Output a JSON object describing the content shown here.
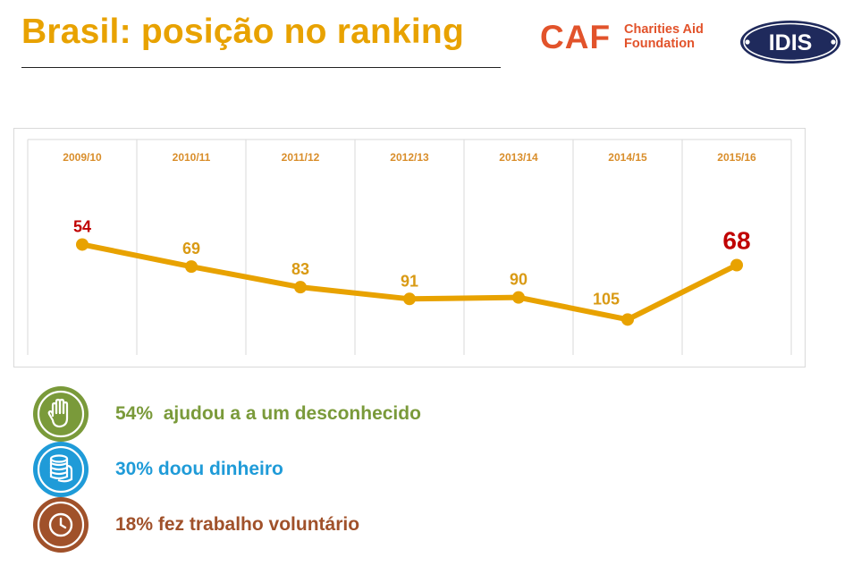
{
  "header": {
    "title": "Brasil: posição no ranking"
  },
  "logos": {
    "caf_mark": "CAF",
    "caf_name_line1": "Charities Aid",
    "caf_name_line2": "Foundation",
    "idis": "IDIS"
  },
  "colors": {
    "title": "#E8A200",
    "line": "#E8A200",
    "highlight": "#C00000",
    "caf": "#E2532B",
    "idis": "#1F2A5C",
    "green": "#7A9A3A",
    "blue": "#1F9BD8",
    "brown": "#A0512A"
  },
  "chart_data": {
    "type": "line",
    "title": "",
    "categories": [
      "2009/10",
      "2010/11",
      "2011/12",
      "2012/13",
      "2013/14",
      "2014/15",
      "2015/16"
    ],
    "series": [
      {
        "name": "Posição no ranking",
        "values": [
          54,
          69,
          83,
          91,
          90,
          105,
          68
        ]
      }
    ],
    "data_labels": [
      "54",
      "69",
      "83",
      "91",
      "90",
      "105",
      "68"
    ],
    "highlighted_indices": [
      0,
      6
    ],
    "y_axis": "inverted",
    "ylim": [
      30,
      120
    ],
    "grid": "vertical",
    "xlabel": "",
    "ylabel": ""
  },
  "stats": [
    {
      "icon": "raised-hand-icon",
      "text": "54%  ajudou a a um desconhecido",
      "color": "#7A9A3A"
    },
    {
      "icon": "coins-icon",
      "text": "30% doou dinheiro",
      "color": "#1F9BD8"
    },
    {
      "icon": "clock-icon",
      "text": "18% fez trabalho voluntário",
      "color": "#A0512A"
    }
  ]
}
